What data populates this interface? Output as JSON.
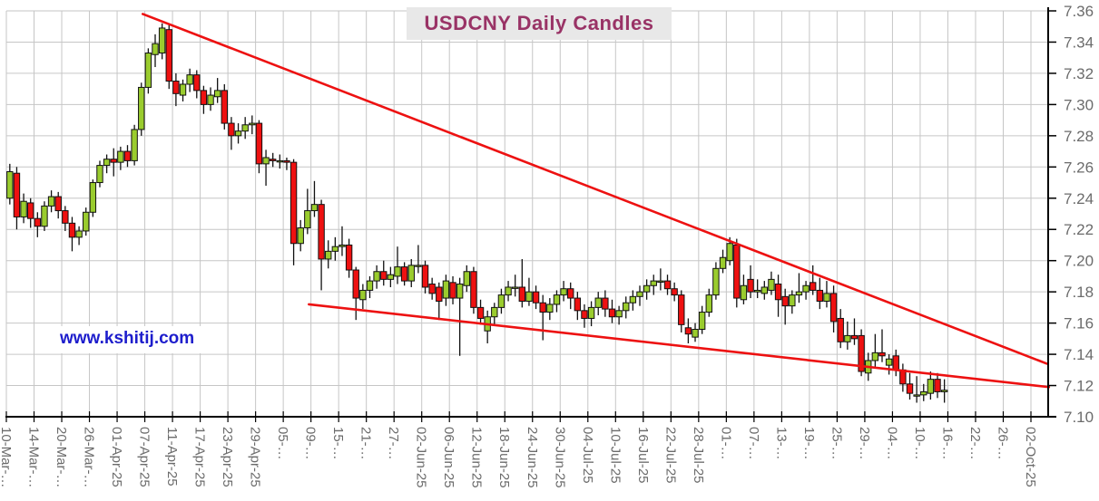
{
  "header": {
    "title": "USDCNY Daily Candles"
  },
  "watermark": {
    "text": "www.kshitij.com"
  },
  "colors": {
    "up_candle": "#9ACC2E",
    "down_candle": "#EE1111",
    "candle_border": "#111111",
    "wick": "#111111",
    "trendline": "#ED1111",
    "grid": "#C6C6C6",
    "axis": "#000000",
    "tick_label": "#6B6B6B",
    "title_text": "#993366",
    "title_bg": "#E8E8E8",
    "watermark_text": "#1D1DCC",
    "background": "#FFFFFF"
  },
  "chart_data": {
    "type": "candlestick",
    "title": "USDCNY Daily Candles",
    "xlabel": "",
    "ylabel": "",
    "ylim": [
      7.1,
      7.36
    ],
    "y_tick_step": 0.02,
    "y_tick_labels": [
      "7.36",
      "7.34",
      "7.32",
      "7.30",
      "7.28",
      "7.26",
      "7.24",
      "7.22",
      "7.20",
      "7.18",
      "7.16",
      "7.14",
      "7.12",
      "7.10"
    ],
    "x_tick_labels": [
      "10-Mar-…",
      "14-Mar-…",
      "20-Mar-…",
      "26-Mar-…",
      "01-Apr-25",
      "07-Apr-25",
      "11-Apr-25",
      "17-Apr-25",
      "23-Apr-25",
      "29-Apr-25",
      "05-…",
      "09-…",
      "15-…",
      "21-…",
      "27-…",
      "02-Jun-25",
      "06-Jun-25",
      "12-Jun-25",
      "18-Jun-25",
      "24-Jun-25",
      "30-Jun-25",
      "04-Jul-25",
      "10-Jul-25",
      "16-Jul-25",
      "22-Jul-25",
      "28-Jul-25",
      "01-…",
      "07-…",
      "13-…",
      "19-…",
      "25-…",
      "29-…",
      "04-…",
      "10-…",
      "16-…",
      "22-…",
      "26-…",
      "02-Oct-25"
    ],
    "slots_per_x_tick": 4,
    "total_slots": 149,
    "grid": true,
    "legend": "none",
    "candles_ohlc": [
      [
        7.24,
        7.262,
        7.236,
        7.257
      ],
      [
        7.256,
        7.26,
        7.22,
        7.228
      ],
      [
        7.228,
        7.243,
        7.224,
        7.238
      ],
      [
        7.237,
        7.24,
        7.221,
        7.227
      ],
      [
        7.227,
        7.231,
        7.215,
        7.222
      ],
      [
        7.222,
        7.238,
        7.219,
        7.235
      ],
      [
        7.235,
        7.245,
        7.231,
        7.241
      ],
      [
        7.241,
        7.244,
        7.227,
        7.232
      ],
      [
        7.232,
        7.235,
        7.219,
        7.224
      ],
      [
        7.224,
        7.228,
        7.206,
        7.215
      ],
      [
        7.215,
        7.222,
        7.21,
        7.219
      ],
      [
        7.219,
        7.234,
        7.216,
        7.231
      ],
      [
        7.231,
        7.252,
        7.228,
        7.25
      ],
      [
        7.25,
        7.264,
        7.247,
        7.261
      ],
      [
        7.261,
        7.268,
        7.256,
        7.265
      ],
      [
        7.265,
        7.272,
        7.254,
        7.263
      ],
      [
        7.263,
        7.273,
        7.258,
        7.27
      ],
      [
        7.27,
        7.274,
        7.26,
        7.264
      ],
      [
        7.264,
        7.287,
        7.261,
        7.284
      ],
      [
        7.284,
        7.314,
        7.28,
        7.311
      ],
      [
        7.311,
        7.336,
        7.307,
        7.333
      ],
      [
        7.332,
        7.345,
        7.324,
        7.339
      ],
      [
        7.333,
        7.352,
        7.329,
        7.349
      ],
      [
        7.348,
        7.351,
        7.31,
        7.315
      ],
      [
        7.315,
        7.32,
        7.299,
        7.307
      ],
      [
        7.306,
        7.316,
        7.302,
        7.313
      ],
      [
        7.313,
        7.323,
        7.308,
        7.319
      ],
      [
        7.319,
        7.322,
        7.304,
        7.309
      ],
      [
        7.309,
        7.312,
        7.294,
        7.3
      ],
      [
        7.3,
        7.311,
        7.296,
        7.306
      ],
      [
        7.305,
        7.317,
        7.301,
        7.309
      ],
      [
        7.309,
        7.313,
        7.284,
        7.288
      ],
      [
        7.288,
        7.292,
        7.271,
        7.28
      ],
      [
        7.28,
        7.288,
        7.275,
        7.283
      ],
      [
        7.283,
        7.292,
        7.278,
        7.287
      ],
      [
        7.287,
        7.293,
        7.281,
        7.288
      ],
      [
        7.288,
        7.29,
        7.256,
        7.262
      ],
      [
        7.262,
        7.271,
        7.248,
        7.266
      ],
      [
        7.265,
        7.269,
        7.26,
        7.264
      ],
      [
        7.264,
        7.268,
        7.259,
        7.264
      ],
      [
        7.264,
        7.266,
        7.258,
        7.263
      ],
      [
        7.263,
        7.265,
        7.197,
        7.211
      ],
      [
        7.211,
        7.226,
        7.206,
        7.221
      ],
      [
        7.221,
        7.246,
        7.217,
        7.232
      ],
      [
        7.232,
        7.251,
        7.228,
        7.236
      ],
      [
        7.236,
        7.239,
        7.181,
        7.201
      ],
      [
        7.201,
        7.213,
        7.195,
        7.206
      ],
      [
        7.206,
        7.215,
        7.2,
        7.209
      ],
      [
        7.209,
        7.222,
        7.203,
        7.21
      ],
      [
        7.21,
        7.214,
        7.189,
        7.194
      ],
      [
        7.194,
        7.196,
        7.162,
        7.176
      ],
      [
        7.175,
        7.185,
        7.169,
        7.181
      ],
      [
        7.181,
        7.19,
        7.176,
        7.187
      ],
      [
        7.187,
        7.197,
        7.182,
        7.193
      ],
      [
        7.193,
        7.2,
        7.184,
        7.188
      ],
      [
        7.188,
        7.196,
        7.183,
        7.191
      ],
      [
        7.19,
        7.209,
        7.185,
        7.196
      ],
      [
        7.196,
        7.199,
        7.184,
        7.187
      ],
      [
        7.187,
        7.201,
        7.183,
        7.197
      ],
      [
        7.197,
        7.21,
        7.192,
        7.197
      ],
      [
        7.197,
        7.2,
        7.179,
        7.183
      ],
      [
        7.185,
        7.189,
        7.175,
        7.179
      ],
      [
        7.183,
        7.186,
        7.162,
        7.174
      ],
      [
        7.176,
        7.191,
        7.171,
        7.187
      ],
      [
        7.186,
        7.19,
        7.172,
        7.176
      ],
      [
        7.176,
        7.189,
        7.139,
        7.185
      ],
      [
        7.184,
        7.197,
        7.18,
        7.193
      ],
      [
        7.193,
        7.196,
        7.166,
        7.17
      ],
      [
        7.17,
        7.175,
        7.159,
        7.163
      ],
      [
        7.155,
        7.168,
        7.147,
        7.164
      ],
      [
        7.164,
        7.173,
        7.159,
        7.17
      ],
      [
        7.17,
        7.182,
        7.166,
        7.178
      ],
      [
        7.178,
        7.187,
        7.174,
        7.183
      ],
      [
        7.183,
        7.191,
        7.177,
        7.183
      ],
      [
        7.183,
        7.201,
        7.17,
        7.174
      ],
      [
        7.174,
        7.189,
        7.171,
        7.18
      ],
      [
        7.18,
        7.184,
        7.169,
        7.173
      ],
      [
        7.173,
        7.178,
        7.149,
        7.167
      ],
      [
        7.167,
        7.176,
        7.162,
        7.172
      ],
      [
        7.172,
        7.181,
        7.167,
        7.178
      ],
      [
        7.178,
        7.187,
        7.174,
        7.182
      ],
      [
        7.182,
        7.186,
        7.169,
        7.176
      ],
      [
        7.176,
        7.18,
        7.162,
        7.168
      ],
      [
        7.168,
        7.172,
        7.157,
        7.163
      ],
      [
        7.163,
        7.174,
        7.158,
        7.17
      ],
      [
        7.17,
        7.18,
        7.165,
        7.176
      ],
      [
        7.176,
        7.181,
        7.164,
        7.169
      ],
      [
        7.169,
        7.175,
        7.16,
        7.164
      ],
      [
        7.164,
        7.171,
        7.159,
        7.168
      ],
      [
        7.168,
        7.177,
        7.163,
        7.173
      ],
      [
        7.173,
        7.181,
        7.168,
        7.177
      ],
      [
        7.177,
        7.184,
        7.171,
        7.18
      ],
      [
        7.18,
        7.188,
        7.175,
        7.184
      ],
      [
        7.184,
        7.191,
        7.178,
        7.187
      ],
      [
        7.187,
        7.195,
        7.181,
        7.187
      ],
      [
        7.187,
        7.191,
        7.178,
        7.182
      ],
      [
        7.182,
        7.186,
        7.174,
        7.178
      ],
      [
        7.178,
        7.181,
        7.154,
        7.159
      ],
      [
        7.157,
        7.163,
        7.147,
        7.153
      ],
      [
        7.151,
        7.16,
        7.148,
        7.156
      ],
      [
        7.156,
        7.171,
        7.153,
        7.167
      ],
      [
        7.167,
        7.182,
        7.164,
        7.178
      ],
      [
        7.178,
        7.199,
        7.175,
        7.195
      ],
      [
        7.195,
        7.207,
        7.192,
        7.202
      ],
      [
        7.2,
        7.215,
        7.197,
        7.211
      ],
      [
        7.21,
        7.214,
        7.17,
        7.176
      ],
      [
        7.175,
        7.191,
        7.172,
        7.184
      ],
      [
        7.188,
        7.197,
        7.176,
        7.18
      ],
      [
        7.18,
        7.188,
        7.176,
        7.181
      ],
      [
        7.179,
        7.187,
        7.175,
        7.183
      ],
      [
        7.181,
        7.193,
        7.178,
        7.188
      ],
      [
        7.185,
        7.191,
        7.164,
        7.175
      ],
      [
        7.177,
        7.182,
        7.159,
        7.171
      ],
      [
        7.171,
        7.181,
        7.166,
        7.178
      ],
      [
        7.178,
        7.192,
        7.173,
        7.18
      ],
      [
        7.18,
        7.187,
        7.175,
        7.184
      ],
      [
        7.186,
        7.197,
        7.178,
        7.181
      ],
      [
        7.181,
        7.189,
        7.169,
        7.174
      ],
      [
        7.174,
        7.187,
        7.17,
        7.179
      ],
      [
        7.179,
        7.184,
        7.154,
        7.161
      ],
      [
        7.163,
        7.169,
        7.144,
        7.148
      ],
      [
        7.148,
        7.161,
        7.143,
        7.152
      ],
      [
        7.152,
        7.163,
        7.146,
        7.15
      ],
      [
        7.152,
        7.156,
        7.126,
        7.129
      ],
      [
        7.128,
        7.141,
        7.123,
        7.136
      ],
      [
        7.136,
        7.153,
        7.131,
        7.141
      ],
      [
        7.141,
        7.156,
        7.135,
        7.139
      ],
      [
        7.133,
        7.14,
        7.127,
        7.137
      ],
      [
        7.139,
        7.143,
        7.126,
        7.13
      ],
      [
        7.13,
        7.134,
        7.116,
        7.121
      ],
      [
        7.121,
        7.128,
        7.111,
        7.115
      ],
      [
        7.114,
        7.126,
        7.109,
        7.114
      ],
      [
        7.114,
        7.121,
        7.11,
        7.116
      ],
      [
        7.115,
        7.129,
        7.111,
        7.124
      ],
      [
        7.124,
        7.128,
        7.112,
        7.116
      ],
      [
        7.116,
        7.124,
        7.109,
        7.117
      ]
    ],
    "trendlines": [
      {
        "name": "upper-resistance-line",
        "from_slot": 19.7,
        "from_value": 7.358,
        "to_slot": 150.3,
        "to_value": 7.134
      },
      {
        "name": "lower-support-line",
        "from_slot": 43.7,
        "from_value": 7.172,
        "to_slot": 150.6,
        "to_value": 7.119
      }
    ]
  }
}
